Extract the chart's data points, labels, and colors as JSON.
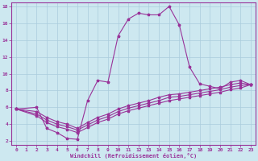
{
  "background_color": "#cde8f0",
  "grid_color": "#aaccdd",
  "line_color": "#993399",
  "xlabel": "Windchill (Refroidissement éolien,°C)",
  "xlim": [
    -0.5,
    23.5
  ],
  "ylim": [
    1.5,
    18.5
  ],
  "xticks": [
    0,
    1,
    2,
    3,
    4,
    5,
    6,
    7,
    8,
    9,
    10,
    11,
    12,
    13,
    14,
    15,
    16,
    17,
    18,
    19,
    20,
    21,
    22,
    23
  ],
  "yticks": [
    2,
    4,
    6,
    8,
    10,
    12,
    14,
    16,
    18
  ],
  "curve1_x": [
    0,
    2,
    3,
    4,
    5,
    6,
    7,
    8,
    9,
    10,
    11,
    12,
    13,
    14,
    15,
    16,
    17,
    18,
    19,
    20,
    21,
    22,
    23
  ],
  "curve1_y": [
    5.8,
    6.0,
    3.5,
    3.0,
    2.3,
    2.2,
    6.8,
    9.2,
    9.0,
    14.5,
    16.5,
    17.2,
    17.0,
    17.0,
    18.0,
    15.8,
    10.8,
    8.8,
    8.5,
    8.2,
    9.0,
    9.2,
    8.7
  ],
  "curve2_x": [
    0,
    2,
    3,
    4,
    5,
    6,
    7,
    8,
    9,
    10,
    11,
    12,
    13,
    14,
    15,
    16,
    17,
    18,
    19,
    20,
    21,
    22,
    23
  ],
  "curve2_y": [
    5.8,
    5.5,
    4.8,
    4.3,
    4.0,
    3.5,
    4.2,
    4.8,
    5.2,
    5.8,
    6.2,
    6.5,
    6.8,
    7.2,
    7.5,
    7.6,
    7.8,
    8.0,
    8.2,
    8.4,
    8.7,
    8.9,
    8.7
  ],
  "curve3_x": [
    0,
    2,
    3,
    4,
    5,
    6,
    7,
    8,
    9,
    10,
    11,
    12,
    13,
    14,
    15,
    16,
    17,
    18,
    19,
    20,
    21,
    22,
    23
  ],
  "curve3_y": [
    5.8,
    5.2,
    4.5,
    4.0,
    3.7,
    3.3,
    3.9,
    4.5,
    4.9,
    5.5,
    5.9,
    6.2,
    6.5,
    6.8,
    7.2,
    7.3,
    7.5,
    7.7,
    7.9,
    8.1,
    8.4,
    8.6,
    8.7
  ],
  "curve4_x": [
    0,
    2,
    3,
    4,
    5,
    6,
    7,
    8,
    9,
    10,
    11,
    12,
    13,
    14,
    15,
    16,
    17,
    18,
    19,
    20,
    21,
    22,
    23
  ],
  "curve4_y": [
    5.8,
    5.0,
    4.2,
    3.7,
    3.4,
    3.0,
    3.6,
    4.2,
    4.6,
    5.2,
    5.6,
    5.9,
    6.2,
    6.5,
    6.8,
    7.0,
    7.2,
    7.4,
    7.6,
    7.8,
    8.1,
    8.3,
    8.7
  ]
}
